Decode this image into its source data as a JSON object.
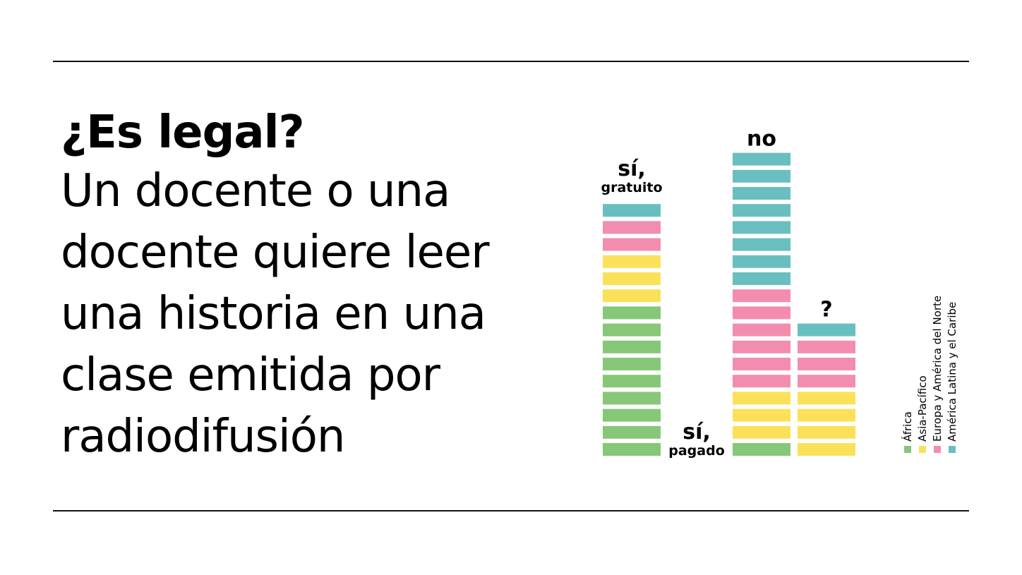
{
  "heading": {
    "title": "¿Es legal?",
    "question_lines": [
      "Un docente o una",
      "docente quiere leer",
      "una historia en una",
      "clase emitida por",
      "radiodifusión"
    ]
  },
  "colors": {
    "africa": "#86c878",
    "asia_pacific": "#fbe15a",
    "europe_na": "#f38db0",
    "latam": "#69bfc0"
  },
  "chart_data": {
    "type": "bar",
    "stacked": true,
    "unit_blocks": true,
    "categories": [
      {
        "main": "sí,",
        "sub": "gratuito"
      },
      {
        "main": "sí,",
        "sub": "pagado"
      },
      {
        "main": "no",
        "sub": ""
      },
      {
        "main": "?",
        "sub": ""
      }
    ],
    "series": [
      {
        "name": "África",
        "color": "#86c878",
        "values": [
          9,
          0,
          1,
          0
        ]
      },
      {
        "name": "Asia-Pacífico",
        "color": "#fbe15a",
        "values": [
          3,
          0,
          3,
          4
        ]
      },
      {
        "name": "Europa y América del Norte",
        "color": "#f38db0",
        "values": [
          2,
          0,
          6,
          3
        ]
      },
      {
        "name": "América Latina y el Caribe",
        "color": "#69bfc0",
        "values": [
          1,
          0,
          8,
          1
        ]
      }
    ],
    "legend": {
      "placement": "right",
      "orientation": "vertical-text"
    }
  }
}
